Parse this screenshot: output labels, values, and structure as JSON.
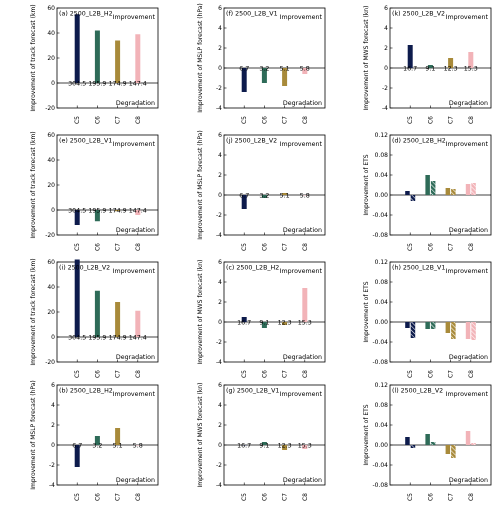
{
  "colors": {
    "C5": "#0d1b4c",
    "C6": "#2e6b58",
    "C7": "#a88a3a",
    "C8": "#f2b3b8",
    "hatch": "#ffffff",
    "axis": "#000000"
  },
  "chart_data": [
    {
      "type": "bar",
      "title": "(a) 2500_L2B_H2",
      "categories": [
        "C5",
        "C6",
        "C7",
        "C8"
      ],
      "ylabel": "Improvement of track forecast (km)",
      "ylim": [
        -20,
        60
      ],
      "yticks": [
        -20,
        0,
        20,
        40,
        60
      ],
      "ytick_labels": [
        "-20",
        "0",
        "20",
        "40",
        "60"
      ],
      "improve_label": "Improvement",
      "degrade_label": "Degradation",
      "series": [
        {
          "values": [
            55,
            42,
            34,
            39
          ],
          "hatched": false
        }
      ],
      "bar_labels": [
        "304.5",
        "195.9",
        "174.9",
        "147.4"
      ]
    },
    {
      "type": "bar",
      "title": "(e) 2500_L2B_V1",
      "categories": [
        "C5",
        "C6",
        "C7",
        "C8"
      ],
      "ylabel": "Improvement of track forecast (km)",
      "ylim": [
        -20,
        60
      ],
      "yticks": [
        -20,
        0,
        20,
        40,
        60
      ],
      "ytick_labels": [
        "-20",
        "0",
        "20",
        "40",
        "60"
      ],
      "improve_label": "Improvement",
      "degrade_label": "Degradation",
      "series": [
        {
          "values": [
            -12,
            -9,
            -1,
            -4
          ],
          "hatched": false
        }
      ],
      "bar_labels": [
        "304.5",
        "195.9",
        "174.9",
        "147.4"
      ]
    },
    {
      "type": "bar",
      "title": "(i) 2500_L2B_V2",
      "categories": [
        "C5",
        "C6",
        "C7",
        "C8"
      ],
      "ylabel": "Improvement of track forecast (km)",
      "ylim": [
        -20,
        60
      ],
      "yticks": [
        -20,
        0,
        20,
        40,
        60
      ],
      "ytick_labels": [
        "-20",
        "0",
        "20",
        "40",
        "60"
      ],
      "improve_label": "Improvement",
      "degrade_label": "Degradation",
      "series": [
        {
          "values": [
            62,
            37,
            28,
            21
          ],
          "hatched": false
        }
      ],
      "bar_labels": [
        "304.5",
        "195.9",
        "174.9",
        "147.4"
      ]
    },
    {
      "type": "bar",
      "title": "(b) 2500_L2B_H2",
      "categories": [
        "C5",
        "C6",
        "C7",
        "C8"
      ],
      "ylabel": "Improvement of MSLP forecast (hPa)",
      "ylim": [
        -4,
        6
      ],
      "yticks": [
        -4,
        -2,
        0,
        2,
        4,
        6
      ],
      "ytick_labels": [
        "-4",
        "-2",
        "0",
        "2",
        "4",
        "6"
      ],
      "improve_label": "Improvement",
      "degrade_label": "Degradation",
      "series": [
        {
          "values": [
            -2.2,
            0.9,
            1.7,
            0.0
          ],
          "hatched": false
        }
      ],
      "bar_labels": [
        "6.7",
        "3.2",
        "5.1",
        "5.8"
      ]
    },
    {
      "type": "bar",
      "title": "(f) 2500_L2B_V1",
      "categories": [
        "C5",
        "C6",
        "C7",
        "C8"
      ],
      "ylabel": "Improvement of MSLP forecast (hPa)",
      "ylim": [
        -4,
        6
      ],
      "yticks": [
        -4,
        -2,
        0,
        2,
        4,
        6
      ],
      "ytick_labels": [
        "-4",
        "-2",
        "0",
        "2",
        "4",
        "6"
      ],
      "improve_label": "Improvement",
      "degrade_label": "Degradation",
      "series": [
        {
          "values": [
            -2.4,
            -1.5,
            -1.8,
            -0.6
          ],
          "hatched": false
        }
      ],
      "bar_labels": [
        "6.7",
        "3.2",
        "5.1",
        "5.8"
      ]
    },
    {
      "type": "bar",
      "title": "(j) 2500_L2B_V2",
      "categories": [
        "C5",
        "C6",
        "C7",
        "C8"
      ],
      "ylabel": "Improvement of MSLP forecast (hPa)",
      "ylim": [
        -4,
        6
      ],
      "yticks": [
        -4,
        -2,
        0,
        2,
        4,
        6
      ],
      "ytick_labels": [
        "-4",
        "-2",
        "0",
        "2",
        "4",
        "6"
      ],
      "improve_label": "Improvement",
      "degrade_label": "Degradation",
      "series": [
        {
          "values": [
            -1.4,
            -0.3,
            0.2,
            0.0
          ],
          "hatched": false
        }
      ],
      "bar_labels": [
        "6.7",
        "3.2",
        "5.1",
        "5.8"
      ]
    },
    {
      "type": "bar",
      "title": "(c) 2500_L2B_H2",
      "categories": [
        "C5",
        "C6",
        "C7",
        "C8"
      ],
      "ylabel": "Improvement of MWS forecast (kn)",
      "ylim": [
        -4,
        6
      ],
      "yticks": [
        -4,
        -2,
        0,
        2,
        4,
        6
      ],
      "ytick_labels": [
        "-4",
        "-2",
        "0",
        "2",
        "4",
        "6"
      ],
      "improve_label": "Improvement",
      "degrade_label": "Degradation",
      "series": [
        {
          "values": [
            0.5,
            -0.6,
            -0.3,
            3.4
          ],
          "hatched": false
        }
      ],
      "bar_labels": [
        "16.7",
        "9.1",
        "12.3",
        "15.3"
      ]
    },
    {
      "type": "bar",
      "title": "(g) 2500_L2B_V1",
      "categories": [
        "C5",
        "C6",
        "C7",
        "C8"
      ],
      "ylabel": "Improvement of MWS forecast (kn)",
      "ylim": [
        -4,
        6
      ],
      "yticks": [
        -4,
        -2,
        0,
        2,
        4,
        6
      ],
      "ytick_labels": [
        "-4",
        "-2",
        "0",
        "2",
        "4",
        "6"
      ],
      "improve_label": "Improvement",
      "degrade_label": "Degradation",
      "series": [
        {
          "values": [
            0.0,
            0.3,
            -0.5,
            -0.4
          ],
          "hatched": false
        }
      ],
      "bar_labels": [
        "16.7",
        "9.1",
        "12.3",
        "15.3"
      ]
    },
    {
      "type": "bar",
      "title": "(k) 2500_L2B_V2",
      "categories": [
        "C5",
        "C6",
        "C7",
        "C8"
      ],
      "ylabel": "Improvement of MWS forecast (kn)",
      "ylim": [
        -4,
        6
      ],
      "yticks": [
        -4,
        -2,
        0,
        2,
        4,
        6
      ],
      "ytick_labels": [
        "-4",
        "-2",
        "0",
        "2",
        "4",
        "6"
      ],
      "improve_label": "Improvement",
      "degrade_label": "Degradation",
      "series": [
        {
          "values": [
            2.3,
            0.3,
            1.0,
            1.6
          ],
          "hatched": false
        }
      ],
      "bar_labels": [
        "16.7",
        "9.1",
        "12.3",
        "15.3"
      ]
    },
    {
      "type": "bar",
      "title": "(d) 2500_L2B_H2",
      "categories": [
        "C5",
        "C6",
        "C7",
        "C8"
      ],
      "ylabel": "Improvement of ETS",
      "ylim": [
        -0.08,
        0.12
      ],
      "yticks": [
        -0.08,
        -0.04,
        0.0,
        0.04,
        0.08,
        0.12
      ],
      "ytick_labels": [
        "-0.08",
        "-0.04",
        "0.00",
        "0.04",
        "0.08",
        "0.12"
      ],
      "improve_label": "Improvement",
      "degrade_label": "Degradation",
      "series": [
        {
          "values": [
            0.008,
            0.04,
            0.014,
            0.022
          ],
          "hatched": false
        },
        {
          "values": [
            -0.012,
            0.028,
            0.012,
            0.024
          ],
          "hatched": true
        }
      ],
      "bar_labels": []
    },
    {
      "type": "bar",
      "title": "(h) 2500_L2B_V1",
      "categories": [
        "C5",
        "C6",
        "C7",
        "C8"
      ],
      "ylabel": "Improvement of ETS",
      "ylim": [
        -0.08,
        0.12
      ],
      "yticks": [
        -0.08,
        -0.04,
        0.0,
        0.04,
        0.08,
        0.12
      ],
      "ytick_labels": [
        "-0.08",
        "-0.04",
        "0.00",
        "0.04",
        "0.08",
        "0.12"
      ],
      "improve_label": "Improvement",
      "degrade_label": "Degradation",
      "series": [
        {
          "values": [
            -0.012,
            -0.014,
            -0.022,
            -0.034
          ],
          "hatched": false
        },
        {
          "values": [
            -0.032,
            -0.014,
            -0.034,
            -0.036
          ],
          "hatched": true
        }
      ],
      "bar_labels": []
    },
    {
      "type": "bar",
      "title": "(l) 2500_L2B_V2",
      "categories": [
        "C5",
        "C6",
        "C7",
        "C8"
      ],
      "ylabel": "Improvement of ETS",
      "ylim": [
        -0.08,
        0.12
      ],
      "yticks": [
        -0.08,
        -0.04,
        0.0,
        0.04,
        0.08,
        0.12
      ],
      "ytick_labels": [
        "-0.08",
        "-0.04",
        "0.00",
        "0.04",
        "0.08",
        "0.12"
      ],
      "improve_label": "Improvement",
      "degrade_label": "Degradation",
      "series": [
        {
          "values": [
            0.016,
            0.022,
            -0.018,
            0.028
          ],
          "hatched": false
        },
        {
          "values": [
            -0.006,
            0.006,
            -0.026,
            0.004
          ],
          "hatched": true
        }
      ],
      "bar_labels": []
    }
  ]
}
